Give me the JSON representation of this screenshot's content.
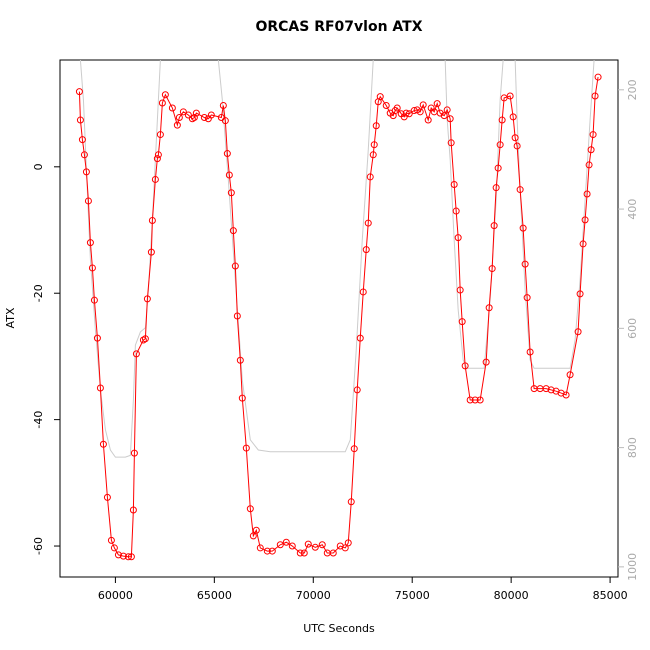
{
  "chart_data": {
    "type": "line",
    "title": "ORCAS RF07vlon ATX",
    "x_label": "UTC Seconds",
    "y_label": "ATX",
    "xlim": [
      57200,
      85400
    ],
    "ylim": [
      -64.9,
      16.9
    ],
    "y2lim": [
      1017,
      150
    ],
    "xticks": [
      60000,
      65000,
      70000,
      75000,
      80000,
      85000
    ],
    "yticks": [
      -60,
      -40,
      -20,
      0
    ],
    "y2ticks": [
      200,
      400,
      600,
      800,
      1000
    ],
    "grid": false,
    "series": [
      {
        "color": "#cccccc",
        "axis": "y2",
        "markers": false,
        "x": [
          58232,
          58384,
          58535,
          58737,
          58990,
          59242,
          59495,
          59747,
          60000,
          60505,
          60757,
          60909,
          61010,
          61263,
          61515,
          61667,
          61869,
          62071,
          62273,
          64000,
          65202,
          65404,
          65707,
          66061,
          66414,
          66818,
          67222,
          67828,
          71616,
          71869,
          72172,
          72475,
          72778,
          73030,
          75000,
          76666,
          76767,
          76919,
          77121,
          77323,
          77575,
          77777,
          78636,
          78939,
          79242,
          79444,
          79596,
          79900,
          80202,
          80303,
          80454,
          80707,
          80959,
          81161,
          82979,
          83232,
          83484,
          83737,
          83990,
          84191
        ],
        "values": [
          150,
          217,
          334,
          485,
          603,
          703,
          770,
          804,
          816,
          816,
          813,
          720,
          628,
          606,
          599,
          536,
          418,
          284,
          150,
          null,
          150,
          217,
          351,
          519,
          687,
          787,
          804,
          807,
          807,
          787,
          636,
          452,
          301,
          150,
          null,
          150,
          250,
          317,
          452,
          569,
          653,
          667,
          667,
          552,
          385,
          217,
          150,
          null,
          150,
          250,
          368,
          535,
          653,
          667,
          667,
          619,
          519,
          385,
          250,
          150
        ]
      },
      {
        "color": "#ff0000",
        "axis": "y",
        "markers": true,
        "x": [
          58182,
          58232,
          58333,
          58434,
          58535,
          58636,
          58737,
          58838,
          58939,
          59091,
          59242,
          59394,
          59596,
          59798,
          59949,
          60152,
          60404,
          60657,
          60808,
          60909,
          60960,
          61061,
          61414,
          61515,
          61616,
          61818,
          61869,
          62020,
          62121,
          62172,
          62273,
          62374,
          62525,
          62879,
          63131,
          63232,
          63434,
          63687,
          63889,
          63990,
          64091,
          64495,
          64697,
          64848,
          65354,
          65455,
          65556,
          65657,
          65758,
          65859,
          65960,
          66061,
          66162,
          66313,
          66414,
          66616,
          66818,
          66970,
          67121,
          67323,
          67677,
          67929,
          68333,
          68636,
          68939,
          69343,
          69545,
          69747,
          70101,
          70454,
          70707,
          71010,
          71363,
          71616,
          71768,
          71919,
          72071,
          72222,
          72374,
          72525,
          72677,
          72778,
          72879,
          73030,
          73081,
          73182,
          73283,
          73384,
          73687,
          73889,
          74040,
          74141,
          74242,
          74444,
          74596,
          74697,
          74848,
          75101,
          75252,
          75404,
          75555,
          75808,
          75959,
          76111,
          76262,
          76414,
          76616,
          76767,
          76919,
          76969,
          77121,
          77222,
          77323,
          77424,
          77525,
          77676,
          77929,
          78181,
          78434,
          78737,
          78888,
          79040,
          79141,
          79242,
          79343,
          79444,
          79545,
          79646,
          79949,
          80101,
          80202,
          80303,
          80454,
          80606,
          80707,
          80808,
          80959,
          81161,
          81464,
          81767,
          82020,
          82272,
          82525,
          82777,
          82979,
          83383,
          83484,
          83636,
          83737,
          83838,
          83939,
          84040,
          84141,
          84242,
          84393
        ],
        "values": [
          11.9,
          7.4,
          4.3,
          1.9,
          -0.8,
          -5.4,
          -12.0,
          -16.0,
          -21.1,
          -27.1,
          -35.0,
          -43.9,
          -52.3,
          -59.1,
          -60.3,
          -61.4,
          -61.6,
          -61.7,
          -61.7,
          -54.3,
          -45.3,
          -29.6,
          -27.4,
          -27.2,
          -20.9,
          -13.5,
          -8.5,
          -2.0,
          1.3,
          1.9,
          5.1,
          10.1,
          11.4,
          9.3,
          6.6,
          7.8,
          8.7,
          8.2,
          7.6,
          7.8,
          8.5,
          7.8,
          7.6,
          8.2,
          7.8,
          9.7,
          7.3,
          2.1,
          -1.3,
          -4.1,
          -10.1,
          -15.7,
          -23.6,
          -30.6,
          -36.6,
          -44.5,
          -54.1,
          -58.4,
          -57.5,
          -60.3,
          -60.8,
          -60.8,
          -59.8,
          -59.4,
          -60.0,
          -61.1,
          -61.1,
          -59.7,
          -60.2,
          -59.8,
          -61.1,
          -61.1,
          -60.0,
          -60.3,
          -59.5,
          -53.0,
          -44.6,
          -35.3,
          -27.1,
          -19.8,
          -13.1,
          -8.9,
          -1.6,
          1.9,
          3.5,
          6.5,
          10.3,
          11.1,
          9.7,
          8.5,
          8.1,
          8.9,
          9.3,
          8.4,
          7.9,
          8.5,
          8.4,
          8.9,
          9.0,
          8.7,
          9.8,
          7.4,
          9.3,
          8.7,
          10.0,
          8.5,
          8.1,
          9.0,
          7.6,
          3.8,
          -2.8,
          -7.0,
          -11.2,
          -19.5,
          -24.5,
          -31.5,
          -36.9,
          -36.9,
          -36.9,
          -30.9,
          -22.3,
          -16.1,
          -9.3,
          -3.3,
          -0.2,
          3.5,
          7.4,
          10.9,
          11.2,
          7.9,
          4.6,
          3.3,
          -3.6,
          -9.7,
          -15.4,
          -20.7,
          -29.3,
          -35.1,
          -35.1,
          -35.1,
          -35.3,
          -35.5,
          -35.8,
          -36.1,
          -32.9,
          -26.1,
          -20.1,
          -12.2,
          -8.4,
          -4.3,
          0.3,
          2.7,
          5.1,
          11.2,
          14.2
        ]
      }
    ]
  }
}
